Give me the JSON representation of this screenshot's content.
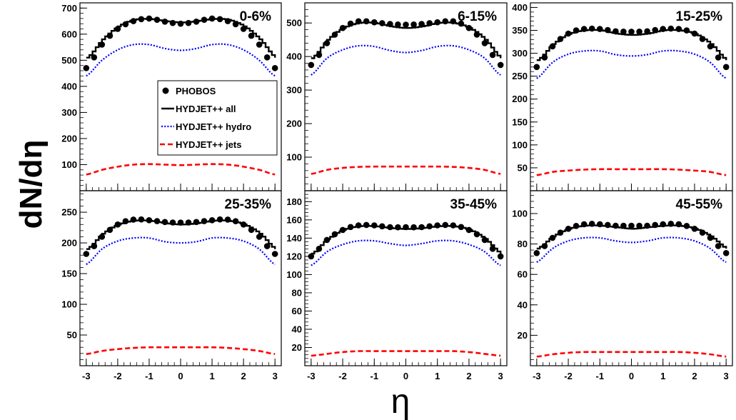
{
  "figure": {
    "ylabel": "dN/dη",
    "xlabel": "η",
    "colors": {
      "phobos": "#000000",
      "all": "#000000",
      "hydro": "#0000ff",
      "jets": "#ff0000"
    }
  },
  "legend": {
    "items": [
      {
        "label": "PHOBOS",
        "style": "marker"
      },
      {
        "label": "HYDJET++ all",
        "style": "solid"
      },
      {
        "label": "HYDJET++ hydro",
        "style": "dotted"
      },
      {
        "label": "HYDJET++ jets",
        "style": "dashed"
      }
    ],
    "placement": "inside first panel, center-right"
  },
  "chart_data": [
    {
      "type": "line",
      "centrality": "0-6%",
      "xlim": [
        -3.2,
        3.2
      ],
      "ylim": [
        0,
        720
      ],
      "yticks": [
        100,
        200,
        300,
        400,
        500,
        600,
        700
      ],
      "xticks": [
        -3,
        -2,
        -1,
        0,
        1,
        2,
        3
      ],
      "x": [
        -3.0,
        -2.5,
        -2.0,
        -1.5,
        -1.0,
        -0.5,
        0.0,
        0.5,
        1.0,
        1.5,
        2.0,
        2.5,
        3.0
      ],
      "series": [
        {
          "name": "PHOBOS",
          "values": [
            470,
            560,
            620,
            650,
            660,
            648,
            640,
            648,
            660,
            650,
            620,
            560,
            470
          ]
        },
        {
          "name": "HYDJET++ all",
          "values": [
            510,
            580,
            630,
            655,
            658,
            650,
            645,
            650,
            658,
            655,
            630,
            580,
            510
          ]
        },
        {
          "name": "HYDJET++ hydro",
          "values": [
            440,
            500,
            540,
            560,
            560,
            545,
            538,
            545,
            560,
            560,
            540,
            500,
            440
          ]
        },
        {
          "name": "HYDJET++ jets",
          "values": [
            62,
            80,
            92,
            100,
            102,
            100,
            98,
            100,
            102,
            100,
            92,
            80,
            62
          ]
        }
      ]
    },
    {
      "type": "line",
      "centrality": "6-15%",
      "xlim": [
        -3.2,
        3.2
      ],
      "ylim": [
        0,
        560
      ],
      "yticks": [
        100,
        200,
        300,
        400,
        500
      ],
      "xticks": [
        -3,
        -2,
        -1,
        0,
        1,
        2,
        3
      ],
      "x": [
        -3.0,
        -2.5,
        -2.0,
        -1.5,
        -1.0,
        -0.5,
        0.0,
        0.5,
        1.0,
        1.5,
        2.0,
        2.5,
        3.0
      ],
      "series": [
        {
          "name": "PHOBOS",
          "values": [
            375,
            440,
            485,
            505,
            502,
            497,
            495,
            497,
            502,
            505,
            485,
            440,
            375
          ]
        },
        {
          "name": "HYDJET++ all",
          "values": [
            395,
            450,
            485,
            500,
            500,
            490,
            485,
            490,
            500,
            500,
            485,
            450,
            395
          ]
        },
        {
          "name": "HYDJET++ hydro",
          "values": [
            345,
            395,
            420,
            432,
            430,
            418,
            412,
            418,
            430,
            432,
            420,
            395,
            345
          ]
        },
        {
          "name": "HYDJET++ jets",
          "values": [
            50,
            62,
            68,
            71,
            72,
            72,
            72,
            72,
            72,
            71,
            68,
            62,
            50
          ]
        }
      ]
    },
    {
      "type": "line",
      "centrality": "15-25%",
      "xlim": [
        -3.2,
        3.2
      ],
      "ylim": [
        0,
        410
      ],
      "yticks": [
        50,
        100,
        150,
        200,
        250,
        300,
        350,
        400
      ],
      "xticks": [
        -3,
        -2,
        -1,
        0,
        1,
        2,
        3
      ],
      "x": [
        -3.0,
        -2.5,
        -2.0,
        -1.5,
        -1.0,
        -0.5,
        0.0,
        0.5,
        1.0,
        1.5,
        2.0,
        2.5,
        3.0
      ],
      "series": [
        {
          "name": "PHOBOS",
          "values": [
            270,
            315,
            343,
            353,
            353,
            348,
            347,
            348,
            353,
            353,
            343,
            315,
            270
          ]
        },
        {
          "name": "HYDJET++ all",
          "values": [
            285,
            320,
            342,
            350,
            350,
            343,
            340,
            343,
            350,
            350,
            342,
            320,
            285
          ]
        },
        {
          "name": "HYDJET++ hydro",
          "values": [
            245,
            280,
            298,
            305,
            305,
            297,
            294,
            297,
            305,
            305,
            298,
            280,
            245
          ]
        },
        {
          "name": "HYDJET++ jets",
          "values": [
            34,
            41,
            44,
            46,
            47,
            47,
            47,
            47,
            47,
            46,
            44,
            41,
            34
          ]
        }
      ]
    },
    {
      "type": "line",
      "centrality": "25-35%",
      "xlim": [
        -3.2,
        3.2
      ],
      "ylim": [
        0,
        285
      ],
      "yticks": [
        50,
        100,
        150,
        200,
        250
      ],
      "xticks": [
        -3,
        -2,
        -1,
        0,
        1,
        2,
        3
      ],
      "x": [
        -3.0,
        -2.5,
        -2.0,
        -1.5,
        -1.0,
        -0.5,
        0.0,
        0.5,
        1.0,
        1.5,
        2.0,
        2.5,
        3.0
      ],
      "series": [
        {
          "name": "PHOBOS",
          "values": [
            182,
            210,
            230,
            238,
            237,
            234,
            233,
            234,
            237,
            238,
            230,
            210,
            182
          ]
        },
        {
          "name": "HYDJET++ all",
          "values": [
            190,
            215,
            230,
            236,
            236,
            232,
            230,
            232,
            236,
            236,
            230,
            215,
            190
          ]
        },
        {
          "name": "HYDJET++ hydro",
          "values": [
            165,
            190,
            203,
            208,
            208,
            202,
            200,
            202,
            208,
            208,
            203,
            190,
            165
          ]
        },
        {
          "name": "HYDJET++ jets",
          "values": [
            19,
            24,
            27,
            29,
            30,
            30,
            30,
            30,
            30,
            29,
            27,
            24,
            19
          ]
        }
      ]
    },
    {
      "type": "line",
      "centrality": "35-45%",
      "xlim": [
        -3.2,
        3.2
      ],
      "ylim": [
        0,
        192
      ],
      "yticks": [
        20,
        40,
        60,
        80,
        100,
        120,
        140,
        160,
        180
      ],
      "xticks": [
        -3,
        -2,
        -1,
        0,
        1,
        2,
        3
      ],
      "x": [
        -3.0,
        -2.5,
        -2.0,
        -1.5,
        -1.0,
        -0.5,
        0.0,
        0.5,
        1.0,
        1.5,
        2.0,
        2.5,
        3.0
      ],
      "series": [
        {
          "name": "PHOBOS",
          "values": [
            120,
            138,
            149,
            154,
            154,
            152,
            152,
            152,
            154,
            154,
            149,
            138,
            120
          ]
        },
        {
          "name": "HYDJET++ all",
          "values": [
            123,
            139,
            149,
            153,
            153,
            151,
            150,
            151,
            153,
            153,
            149,
            139,
            123
          ]
        },
        {
          "name": "HYDJET++ hydro",
          "values": [
            110,
            125,
            133,
            137,
            137,
            134,
            132,
            134,
            137,
            137,
            133,
            125,
            110
          ]
        },
        {
          "name": "HYDJET++ jets",
          "values": [
            11,
            13,
            15,
            16,
            16,
            16,
            16,
            16,
            16,
            16,
            15,
            13,
            11
          ]
        }
      ]
    },
    {
      "type": "line",
      "centrality": "45-55%",
      "xlim": [
        -3.2,
        3.2
      ],
      "ylim": [
        0,
        115
      ],
      "yticks": [
        20,
        40,
        60,
        80,
        100
      ],
      "xticks": [
        -3,
        -2,
        -1,
        0,
        1,
        2,
        3
      ],
      "x": [
        -3.0,
        -2.5,
        -2.0,
        -1.5,
        -1.0,
        -0.5,
        0.0,
        0.5,
        1.0,
        1.5,
        2.0,
        2.5,
        3.0
      ],
      "series": [
        {
          "name": "PHOBOS",
          "values": [
            74,
            84,
            90,
            93,
            93,
            92,
            92,
            92,
            93,
            93,
            90,
            84,
            74
          ]
        },
        {
          "name": "HYDJET++ all",
          "values": [
            77,
            85,
            90,
            92,
            92,
            91,
            90,
            91,
            92,
            92,
            90,
            85,
            77
          ]
        },
        {
          "name": "HYDJET++ hydro",
          "values": [
            68,
            77,
            82,
            84,
            84,
            82,
            81,
            82,
            84,
            84,
            82,
            77,
            68
          ]
        },
        {
          "name": "HYDJET++ jets",
          "values": [
            6,
            7.5,
            8.5,
            9,
            9,
            9,
            9,
            9,
            9,
            9,
            8.5,
            7.5,
            6
          ]
        }
      ]
    }
  ]
}
